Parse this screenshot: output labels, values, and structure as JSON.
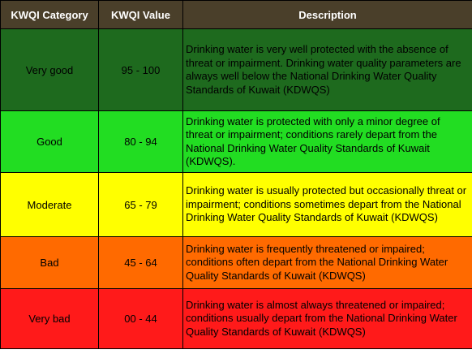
{
  "table": {
    "headers": [
      "KWQI Category",
      "KWQI Value",
      "Description"
    ],
    "header_color": "#4a3f2a",
    "rows": [
      {
        "category": "Very good",
        "value": "95 - 100",
        "description": "Drinking water is very well protected with the absence of threat or impairment. Drinking water quality parameters are always well below the National Drinking Water Quality Standards of Kuwait (KDWQS)",
        "color": "#1e6a1e"
      },
      {
        "category": "Good",
        "value": "80 - 94",
        "description": "Drinking water is protected with only a minor degree of threat or impairment; conditions rarely depart from the National Drinking Water Quality Standards of Kuwait (KDWQS).",
        "color": "#22dd22"
      },
      {
        "category": "Moderate",
        "value": "65 - 79",
        "description": "Drinking water is usually protected but occasionally threat or impairment; conditions sometimes depart from the National Drinking Water Quality Standards of Kuwait (KDWQS)",
        "color": "#ffff00"
      },
      {
        "category": "Bad",
        "value": "45 - 64",
        "description": "Drinking water is frequently threatened or impaired; conditions often depart from the National Drinking Water Quality Standards of Kuwait (KDWQS)",
        "color": "#ff6a00"
      },
      {
        "category": "Very bad",
        "value": "00 - 44",
        "description": "Drinking water is almost always threatened or impaired; conditions usually depart from the National Drinking Water Quality Standards of Kuwait (KDWQS)",
        "color": "#ff1a1a"
      }
    ]
  }
}
